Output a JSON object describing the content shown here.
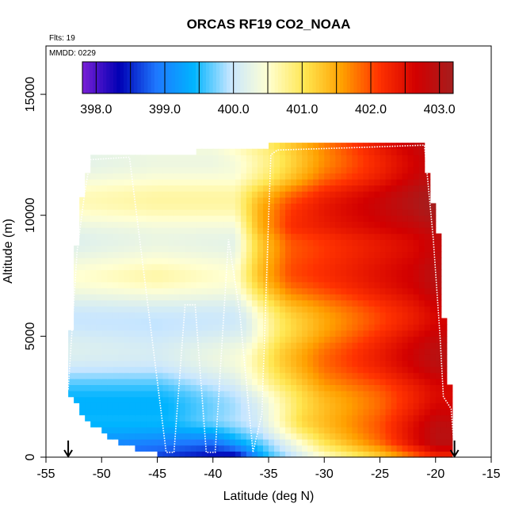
{
  "chart_data": {
    "type": "heatmap",
    "title": "ORCAS RF19 CO2_NOAA",
    "flights_note": "Flts: 19",
    "date_note": "MMDD: 0229",
    "xlabel": "Latitude (deg N)",
    "ylabel": "Altitude (m)",
    "xlim": [
      -55,
      -15
    ],
    "ylim": [
      0,
      17000
    ],
    "xticks": [
      -55,
      -50,
      -45,
      -40,
      -35,
      -30,
      -25,
      -20,
      -15
    ],
    "xtick_labels": [
      "-55",
      "-50",
      "-45",
      "-40",
      "-35",
      "-30",
      "-25",
      "-20",
      "-15"
    ],
    "yticks": [
      0,
      5000,
      10000,
      15000
    ],
    "ytick_labels": [
      "0",
      "5000",
      "10000",
      "15000"
    ],
    "colorbar": {
      "range": [
        397.8,
        403.2
      ],
      "ticks": [
        398.0,
        399.0,
        400.0,
        401.0,
        402.0,
        403.0
      ],
      "tick_labels": [
        "398.0",
        "399.0",
        "400.0",
        "401.0",
        "402.0",
        "403.0"
      ],
      "colors": [
        "#7a1fd6",
        "#0000b4",
        "#1e78ff",
        "#00b4ff",
        "#c8e6ff",
        "#ffffd2",
        "#ffe650",
        "#ffa000",
        "#ff3200",
        "#d20000",
        "#a51e1e"
      ]
    },
    "domain_bounds": {
      "left": [
        [
          0,
          -44.0
        ],
        [
          500,
          -48.0
        ],
        [
          1500,
          -51.5
        ],
        [
          2800,
          -53.0
        ],
        [
          3500,
          -53.0
        ],
        [
          5000,
          -52.8
        ],
        [
          7000,
          -52.5
        ],
        [
          9000,
          -52.2
        ],
        [
          10500,
          -51.8
        ],
        [
          11000,
          -51.6
        ],
        [
          12400,
          -51.0
        ],
        [
          12500,
          -51.0
        ]
      ],
      "right": [
        [
          0,
          -18.3
        ],
        [
          1500,
          -18.5
        ],
        [
          2500,
          -18.6
        ],
        [
          3500,
          -19.0
        ],
        [
          5500,
          -19.2
        ],
        [
          7500,
          -19.5
        ],
        [
          9500,
          -19.8
        ],
        [
          11000,
          -20.5
        ],
        [
          12000,
          -20.8
        ],
        [
          12900,
          -21.0
        ]
      ],
      "top": [
        [
          -51.0,
          12500
        ],
        [
          -42.0,
          12500
        ],
        [
          -41.0,
          12700
        ],
        [
          -36.5,
          12700
        ],
        [
          -34.5,
          12900
        ],
        [
          -29.0,
          13000
        ],
        [
          -21.0,
          12950
        ]
      ]
    },
    "field_anchors": [
      {
        "alt": 0,
        "lat": [
          -45,
          -38,
          -35,
          -30,
          -25,
          -20
        ],
        "co2": [
          398.6,
          398.2,
          399.5,
          400.5,
          401.2,
          402.2
        ]
      },
      {
        "alt": 600,
        "lat": [
          -48,
          -40,
          -35,
          -30,
          -25,
          -20
        ],
        "co2": [
          398.8,
          398.6,
          399.6,
          400.8,
          401.6,
          402.7
        ]
      },
      {
        "alt": 1500,
        "lat": [
          -51,
          -44,
          -36,
          -32,
          -25,
          -20
        ],
        "co2": [
          399.3,
          399.3,
          399.9,
          401.0,
          401.8,
          402.7
        ]
      },
      {
        "alt": 3000,
        "lat": [
          -53,
          -45,
          -38,
          -34,
          -30,
          -25,
          -20
        ],
        "co2": [
          399.6,
          399.6,
          400.1,
          400.9,
          401.6,
          402.0,
          402.6
        ]
      },
      {
        "alt": 5000,
        "lat": [
          -53,
          -45,
          -37,
          -34,
          -30,
          -25,
          -20
        ],
        "co2": [
          400.2,
          400.1,
          400.3,
          401.1,
          401.7,
          402.3,
          402.9
        ]
      },
      {
        "alt": 7500,
        "lat": [
          -53,
          -45,
          -38,
          -36,
          -33,
          -28,
          -22,
          -20
        ],
        "co2": [
          400.4,
          400.6,
          400.4,
          401.2,
          401.9,
          402.2,
          402.6,
          402.9
        ]
      },
      {
        "alt": 9500,
        "lat": [
          -53,
          -45,
          -38,
          -36,
          -33,
          -28,
          -22,
          -20
        ],
        "co2": [
          400.3,
          400.4,
          400.4,
          401.4,
          402.2,
          402.5,
          402.8,
          403.0
        ]
      },
      {
        "alt": 11500,
        "lat": [
          -52,
          -45,
          -38,
          -35,
          -30,
          -25,
          -21
        ],
        "co2": [
          400.3,
          400.4,
          400.4,
          400.9,
          401.8,
          402.3,
          402.8
        ]
      },
      {
        "alt": 13000,
        "lat": [
          -52,
          -45,
          -40,
          -35,
          -30,
          -25,
          -21
        ],
        "co2": [
          400.4,
          400.5,
          400.5,
          401.0,
          401.8,
          402.5,
          403.0
        ]
      }
    ],
    "flight_track": [
      [
        -53.0,
        2800
      ],
      [
        -52.2,
        8500
      ],
      [
        -51.5,
        11000
      ],
      [
        -51.0,
        12300
      ],
      [
        -47.5,
        12400
      ],
      [
        -44.2,
        200
      ],
      [
        -43.5,
        200
      ],
      [
        -42.5,
        6300
      ],
      [
        -41.6,
        6300
      ],
      [
        -40.6,
        200
      ],
      [
        -39.8,
        200
      ],
      [
        -38.6,
        9000
      ],
      [
        -37.6,
        6000
      ],
      [
        -36.4,
        200
      ],
      [
        -35.6,
        1800
      ],
      [
        -34.8,
        12500
      ],
      [
        -34.2,
        12700
      ],
      [
        -27.0,
        12800
      ],
      [
        -21.0,
        12900
      ],
      [
        -20.2,
        9000
      ],
      [
        -19.6,
        5000
      ],
      [
        -19.3,
        2500
      ],
      [
        -18.6,
        2000
      ],
      [
        -18.3,
        200
      ]
    ],
    "arrow_markers": [
      -53.0,
      -18.3
    ]
  }
}
